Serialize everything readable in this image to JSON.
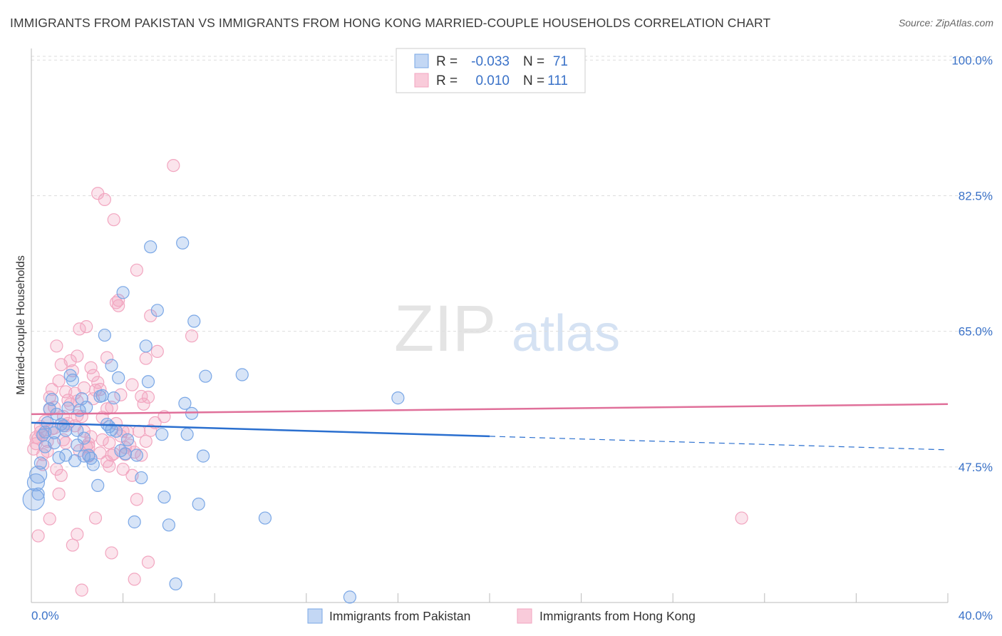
{
  "header": {
    "title": "IMMIGRANTS FROM PAKISTAN VS IMMIGRANTS FROM HONG KONG MARRIED-COUPLE HOUSEHOLDS CORRELATION CHART",
    "source": "Source: ZipAtlas.com"
  },
  "watermark": {
    "zip": "ZIP",
    "atlas": "atlas"
  },
  "colors": {
    "pakistan": "#7aa7e6",
    "pakistan_line": "#2a6fcf",
    "hongkong": "#f2a6c0",
    "hongkong_line": "#e0709a",
    "axis_label": "#3a72c8",
    "grid": "#dddddd"
  },
  "legend": {
    "rows": [
      {
        "r_label": "R =",
        "r_value": "-0.033",
        "n_label": "N =",
        "n_value": "71"
      },
      {
        "r_label": "R =",
        "r_value": "0.010",
        "n_label": "N =",
        "n_value": "111"
      }
    ]
  },
  "chart_data": {
    "type": "scatter",
    "title": "IMMIGRANTS FROM PAKISTAN VS IMMIGRANTS FROM HONG KONG MARRIED-COUPLE HOUSEHOLDS CORRELATION CHART",
    "xlabel": "",
    "ylabel": "Married-couple Households",
    "xlim": [
      0,
      40
    ],
    "ylim": [
      30,
      101.5
    ],
    "x_tick_labels": [
      "0.0%",
      "40.0%"
    ],
    "y_ticks": [
      47.5,
      65.0,
      82.5,
      100.0
    ],
    "y_tick_labels": [
      "47.5%",
      "65.0%",
      "82.5%",
      "100.0%"
    ],
    "series": [
      {
        "name": "Immigrants from Pakistan",
        "r": -0.033,
        "n": 71,
        "trend": {
          "x_solid_end": 20.0,
          "x_end": 40.0,
          "y_start": 53.2,
          "y_end": 49.7
        },
        "points": [
          [
            0.1,
            43.3
          ],
          [
            0.2,
            45.5
          ],
          [
            0.3,
            46.5
          ],
          [
            0.4,
            48.0
          ],
          [
            0.5,
            51.6
          ],
          [
            0.6,
            52.0
          ],
          [
            0.7,
            53.2
          ],
          [
            0.8,
            55.0
          ],
          [
            0.9,
            56.2
          ],
          [
            1.0,
            51.9
          ],
          [
            1.1,
            54.3
          ],
          [
            1.2,
            48.7
          ],
          [
            1.3,
            53.0
          ],
          [
            1.4,
            52.8
          ],
          [
            1.5,
            52.2
          ],
          [
            1.6,
            55.1
          ],
          [
            1.7,
            59.3
          ],
          [
            1.8,
            58.7
          ],
          [
            1.9,
            48.3
          ],
          [
            2.0,
            52.2
          ],
          [
            2.1,
            54.8
          ],
          [
            2.2,
            56.3
          ],
          [
            2.3,
            48.9
          ],
          [
            2.4,
            55.2
          ],
          [
            2.5,
            49.0
          ],
          [
            2.6,
            48.6
          ],
          [
            2.7,
            47.8
          ],
          [
            2.9,
            45.1
          ],
          [
            3.0,
            56.6
          ],
          [
            3.1,
            56.7
          ],
          [
            3.2,
            64.5
          ],
          [
            3.3,
            53.0
          ],
          [
            3.4,
            52.7
          ],
          [
            3.5,
            60.6
          ],
          [
            3.6,
            56.4
          ],
          [
            3.7,
            52.1
          ],
          [
            3.8,
            59.0
          ],
          [
            3.9,
            49.6
          ],
          [
            4.0,
            70.0
          ],
          [
            4.1,
            49.2
          ],
          [
            4.2,
            51.0
          ],
          [
            4.5,
            40.4
          ],
          [
            4.8,
            46.1
          ],
          [
            5.0,
            63.1
          ],
          [
            5.1,
            58.5
          ],
          [
            5.2,
            75.9
          ],
          [
            5.5,
            67.7
          ],
          [
            5.7,
            51.7
          ],
          [
            5.8,
            43.6
          ],
          [
            6.0,
            40.0
          ],
          [
            6.3,
            32.4
          ],
          [
            6.6,
            76.4
          ],
          [
            6.7,
            55.7
          ],
          [
            6.8,
            51.7
          ],
          [
            7.0,
            54.4
          ],
          [
            7.1,
            66.3
          ],
          [
            7.3,
            42.7
          ],
          [
            7.5,
            48.9
          ],
          [
            7.6,
            59.2
          ],
          [
            9.2,
            59.4
          ],
          [
            10.2,
            40.9
          ],
          [
            13.9,
            30.7
          ],
          [
            16.0,
            56.4
          ],
          [
            0.3,
            44.0
          ],
          [
            1.0,
            50.6
          ],
          [
            2.0,
            50.3
          ],
          [
            3.5,
            52.3
          ],
          [
            4.6,
            49.0
          ],
          [
            0.6,
            50.1
          ],
          [
            2.3,
            51.2
          ],
          [
            1.5,
            49.0
          ]
        ]
      },
      {
        "name": "Immigrants from Hong Kong",
        "r": 0.01,
        "n": 111,
        "trend": {
          "x_start": 0.0,
          "x_end": 40.0,
          "y_start": 54.3,
          "y_end": 55.6
        },
        "points": [
          [
            0.1,
            49.8
          ],
          [
            0.2,
            50.5
          ],
          [
            0.3,
            51.2
          ],
          [
            0.4,
            52.0
          ],
          [
            0.5,
            49.1
          ],
          [
            0.6,
            53.4
          ],
          [
            0.7,
            50.8
          ],
          [
            0.8,
            54.9
          ],
          [
            0.9,
            57.5
          ],
          [
            1.0,
            52.5
          ],
          [
            1.1,
            63.1
          ],
          [
            1.2,
            58.6
          ],
          [
            1.3,
            46.4
          ],
          [
            1.4,
            54.0
          ],
          [
            1.5,
            52.8
          ],
          [
            1.6,
            56.1
          ],
          [
            1.7,
            61.2
          ],
          [
            1.8,
            59.9
          ],
          [
            1.9,
            57.0
          ],
          [
            2.0,
            56.0
          ],
          [
            2.1,
            65.3
          ],
          [
            2.2,
            54.0
          ],
          [
            2.3,
            52.1
          ],
          [
            2.4,
            50.1
          ],
          [
            2.5,
            48.9
          ],
          [
            2.6,
            51.4
          ],
          [
            2.7,
            59.3
          ],
          [
            2.8,
            57.4
          ],
          [
            2.9,
            82.8
          ],
          [
            3.0,
            57.5
          ],
          [
            3.1,
            53.9
          ],
          [
            3.2,
            82.0
          ],
          [
            3.3,
            55.0
          ],
          [
            3.4,
            50.6
          ],
          [
            3.5,
            49.0
          ],
          [
            3.6,
            79.4
          ],
          [
            3.7,
            68.7
          ],
          [
            3.8,
            68.3
          ],
          [
            3.9,
            56.8
          ],
          [
            4.0,
            52.1
          ],
          [
            4.1,
            50.0
          ],
          [
            4.2,
            52.0
          ],
          [
            4.4,
            58.1
          ],
          [
            4.5,
            49.4
          ],
          [
            4.6,
            72.9
          ],
          [
            4.7,
            52.1
          ],
          [
            4.8,
            49.0
          ],
          [
            4.9,
            55.6
          ],
          [
            5.0,
            61.5
          ],
          [
            5.1,
            56.5
          ],
          [
            5.2,
            52.2
          ],
          [
            5.5,
            62.4
          ],
          [
            5.8,
            54.0
          ],
          [
            6.2,
            86.4
          ],
          [
            7.0,
            64.4
          ],
          [
            0.3,
            38.6
          ],
          [
            0.8,
            40.8
          ],
          [
            1.2,
            44.0
          ],
          [
            1.8,
            37.4
          ],
          [
            2.0,
            38.8
          ],
          [
            2.2,
            31.6
          ],
          [
            2.8,
            40.9
          ],
          [
            3.5,
            36.4
          ],
          [
            4.5,
            33.0
          ],
          [
            4.6,
            43.3
          ],
          [
            5.1,
            35.2
          ],
          [
            0.5,
            47.8
          ],
          [
            1.5,
            50.6
          ],
          [
            2.5,
            50.1
          ],
          [
            3.3,
            61.6
          ],
          [
            4.0,
            47.2
          ],
          [
            2.0,
            54.1
          ],
          [
            3.5,
            55.2
          ],
          [
            5.0,
            50.8
          ],
          [
            1.0,
            55.2
          ],
          [
            0.5,
            51.7
          ],
          [
            1.5,
            57.2
          ],
          [
            2.6,
            60.3
          ],
          [
            4.1,
            49.1
          ],
          [
            5.2,
            67.0
          ],
          [
            0.7,
            49.5
          ],
          [
            1.7,
            55.6
          ],
          [
            2.9,
            58.4
          ],
          [
            3.7,
            53.1
          ],
          [
            4.3,
            50.3
          ],
          [
            0.9,
            52.4
          ],
          [
            1.9,
            52.8
          ],
          [
            3.1,
            51.0
          ],
          [
            2.4,
            65.6
          ],
          [
            3.6,
            49.2
          ],
          [
            1.1,
            47.2
          ],
          [
            2.1,
            49.6
          ],
          [
            3.9,
            51.5
          ],
          [
            4.8,
            56.6
          ],
          [
            0.2,
            51.3
          ],
          [
            1.3,
            60.7
          ],
          [
            2.3,
            57.7
          ],
          [
            3.4,
            47.6
          ],
          [
            4.4,
            46.4
          ],
          [
            1.6,
            53.1
          ],
          [
            2.7,
            56.3
          ],
          [
            3.0,
            49.3
          ],
          [
            0.4,
            52.7
          ],
          [
            1.4,
            51.0
          ],
          [
            5.4,
            53.2
          ],
          [
            3.8,
            69.0
          ],
          [
            31.0,
            40.9
          ],
          [
            2.0,
            61.8
          ],
          [
            0.8,
            56.5
          ],
          [
            3.3,
            48.2
          ],
          [
            2.5,
            50.5
          ]
        ]
      }
    ],
    "legend_labels": [
      "Immigrants from Pakistan",
      "Immigrants from Hong Kong"
    ]
  }
}
